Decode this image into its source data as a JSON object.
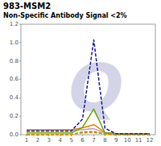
{
  "chart_data": {
    "type": "line",
    "title": "983-MSM2",
    "subtitle": "Non-Specific Antibody Signal <2%",
    "annotations": [
      "Q"
    ],
    "x": [
      1,
      2,
      3,
      4,
      5,
      6,
      7,
      8,
      9,
      10,
      11,
      12
    ],
    "series": [
      {
        "color": "#1a1aaa",
        "line_style": "dashed",
        "values": [
          0.04,
          0.04,
          0.04,
          0.04,
          0.04,
          0.17,
          1.03,
          0.07,
          0.01,
          0.01,
          0.01,
          0.01
        ]
      },
      {
        "color": "#66aa00",
        "line_style": "solid",
        "values": [
          0.02,
          0.02,
          0.02,
          0.02,
          0.02,
          0.08,
          0.28,
          0.02,
          0.01,
          0.01,
          0.01,
          0.01
        ]
      },
      {
        "color": "#ee8800",
        "line_style": "solid",
        "values": [
          0.055,
          0.055,
          0.055,
          0.055,
          0.055,
          0.075,
          0.11,
          0.025,
          0.01,
          0.01,
          0.01,
          0.01
        ]
      },
      {
        "color": "#ee8800",
        "line_style": "dashed",
        "values": [
          0.0,
          0.0,
          0.0,
          0.0,
          0.005,
          0.02,
          0.025,
          0.008,
          0.0,
          0.0,
          0.0,
          0.0
        ]
      },
      {
        "color": "#66aa00",
        "line_style": "dashed",
        "values": [
          0.0,
          0.0,
          0.0,
          0.0,
          0.003,
          0.03,
          0.035,
          0.008,
          0.0,
          0.0,
          0.0,
          0.0
        ]
      },
      {
        "color": "#bb99cc",
        "line_style": "solid",
        "values": [
          0.045,
          0.045,
          0.045,
          0.045,
          0.045,
          0.055,
          0.065,
          0.02,
          0.01,
          0.01,
          0.01,
          0.01
        ]
      }
    ],
    "xlim": [
      0.5,
      12.5
    ],
    "ylim": [
      0,
      1.2
    ],
    "xticks": [
      1,
      2,
      3,
      4,
      5,
      6,
      7,
      8,
      9,
      10,
      11,
      12
    ],
    "yticks": [
      {
        "value": 0,
        "label": "0.0"
      },
      0.2,
      0.4,
      0.6,
      0.8,
      {
        "value": 1.0,
        "label": "1.0"
      },
      1.2
    ],
    "grid": false
  }
}
